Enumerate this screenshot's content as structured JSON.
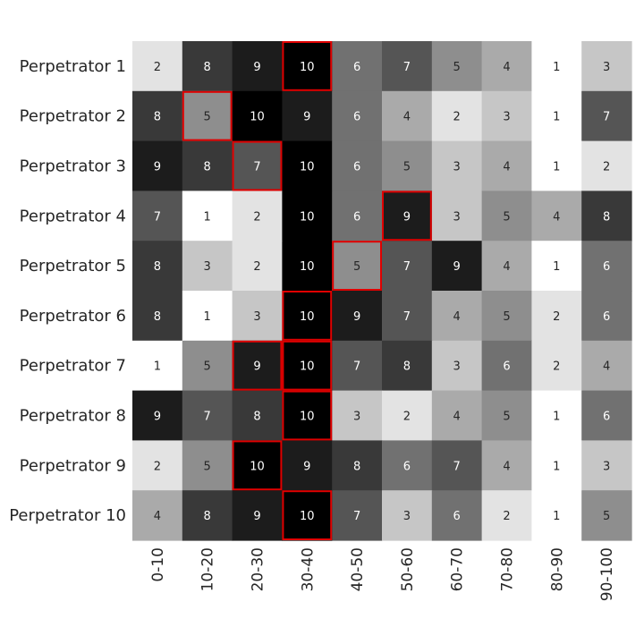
{
  "chart_data": {
    "type": "heatmap",
    "title": "",
    "xlabel": "",
    "ylabel": "",
    "x_categories": [
      "0-10",
      "10-20",
      "20-30",
      "30-40",
      "40-50",
      "50-60",
      "60-70",
      "70-80",
      "80-90",
      "90-100"
    ],
    "y_categories": [
      "Perpetrator 1",
      "Perpetrator 2",
      "Perpetrator 3",
      "Perpetrator 4",
      "Perpetrator 5",
      "Perpetrator 6",
      "Perpetrator 7",
      "Perpetrator 8",
      "Perpetrator 9",
      "Perpetrator 10"
    ],
    "values": [
      [
        2,
        8,
        9,
        10,
        6,
        7,
        5,
        4,
        1,
        3
      ],
      [
        8,
        5,
        10,
        9,
        6,
        4,
        2,
        3,
        1,
        7
      ],
      [
        9,
        8,
        7,
        10,
        6,
        5,
        3,
        4,
        1,
        2
      ],
      [
        7,
        1,
        2,
        10,
        6,
        9,
        3,
        5,
        4,
        8
      ],
      [
        8,
        3,
        2,
        10,
        5,
        7,
        9,
        4,
        1,
        6
      ],
      [
        8,
        1,
        3,
        10,
        9,
        7,
        4,
        5,
        2,
        6
      ],
      [
        1,
        5,
        9,
        10,
        7,
        8,
        3,
        6,
        2,
        4
      ],
      [
        9,
        7,
        8,
        10,
        3,
        2,
        4,
        5,
        1,
        6
      ],
      [
        2,
        5,
        10,
        9,
        8,
        6,
        7,
        4,
        1,
        3
      ],
      [
        4,
        8,
        9,
        10,
        7,
        3,
        6,
        2,
        1,
        5
      ]
    ],
    "value_range": [
      1,
      10
    ],
    "colormap": "grayscale: low=white, high=black",
    "highlight_color": "#e00000",
    "highlighted_cells": [
      {
        "row": 0,
        "col": 3
      },
      {
        "row": 1,
        "col": 1
      },
      {
        "row": 2,
        "col": 2
      },
      {
        "row": 3,
        "col": 5
      },
      {
        "row": 4,
        "col": 4
      },
      {
        "row": 5,
        "col": 3
      },
      {
        "row": 6,
        "col": 2
      },
      {
        "row": 6,
        "col": 3
      },
      {
        "row": 7,
        "col": 3
      },
      {
        "row": 8,
        "col": 2
      },
      {
        "row": 9,
        "col": 3
      }
    ],
    "grid": false,
    "legend": "none"
  }
}
